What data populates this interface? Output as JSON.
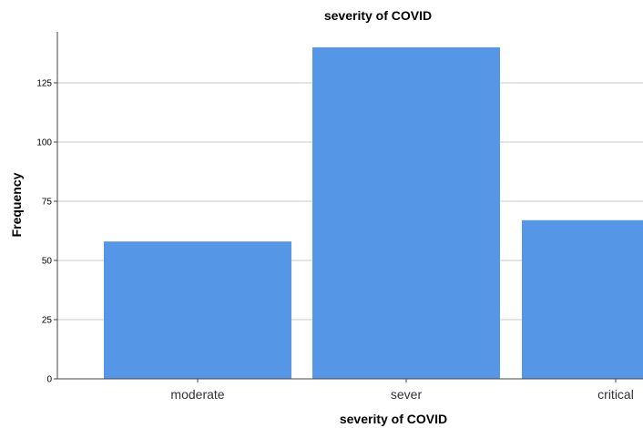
{
  "chart_data": {
    "type": "bar",
    "title": "severity of COVID",
    "xlabel": "severity of COVID",
    "ylabel": "Frequency",
    "categories": [
      "moderate",
      "sever",
      "critical"
    ],
    "values": [
      58,
      140,
      67
    ],
    "ylim": [
      0,
      143
    ],
    "yticks": [
      0,
      25,
      50,
      75,
      100,
      125
    ],
    "grid": true,
    "bar_color": "#5596e6",
    "grid_color": "#c8c8c8",
    "axis_color": "#444444"
  }
}
